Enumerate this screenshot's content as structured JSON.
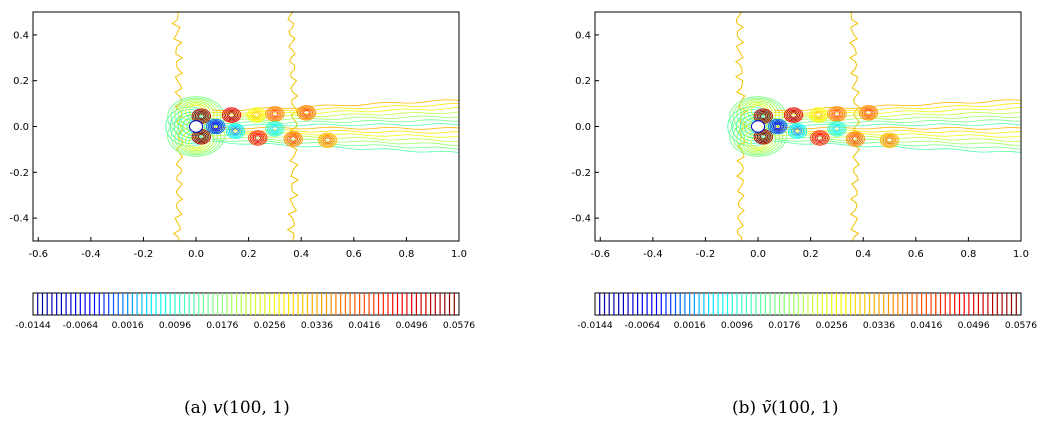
{
  "figure": {
    "panels": [
      {
        "id": "a",
        "caption_label": "(a)",
        "caption_symbol": "v",
        "caption_args": "(100, 1)"
      },
      {
        "id": "b",
        "caption_label": "(b)",
        "caption_symbol": "ṽ",
        "caption_args": "(100, 1)"
      }
    ],
    "x_ticks": [
      "-0.6",
      "-0.4",
      "-0.2",
      "0.0",
      "0.2",
      "0.4",
      "0.6",
      "0.8",
      "1.0"
    ],
    "y_ticks": [
      "0.4",
      "0.2",
      "0.0",
      "-0.2",
      "-0.4"
    ],
    "colorbar_ticks": [
      "-0.0144",
      "-0.0064",
      "0.0016",
      "0.0096",
      "0.0176",
      "0.0256",
      "0.0336",
      "0.0416",
      "0.0496",
      "0.0576"
    ],
    "colorbar_range": [
      -0.0144,
      0.0576
    ],
    "x_range": [
      -0.62,
      1.0
    ],
    "y_range": [
      -0.5,
      0.5
    ],
    "colormap": [
      "#00008f",
      "#0000ff",
      "#00ffff",
      "#80ff80",
      "#ffff00",
      "#ff8000",
      "#ff0000",
      "#800000"
    ],
    "contour_color_zero": "#f2c300"
  }
}
